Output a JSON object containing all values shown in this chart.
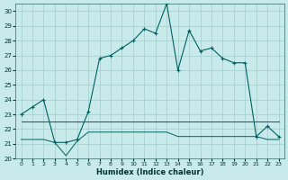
{
  "xlabel": "Humidex (Indice chaleur)",
  "bg_color": "#c8eaea",
  "grid_color": "#a0cccc",
  "line_color": "#006060",
  "xlim": [
    -0.5,
    23.5
  ],
  "ylim": [
    20,
    30.5
  ],
  "yticks": [
    20,
    21,
    22,
    23,
    24,
    25,
    26,
    27,
    28,
    29,
    30
  ],
  "xticks": [
    0,
    1,
    2,
    3,
    4,
    5,
    6,
    7,
    8,
    9,
    10,
    11,
    12,
    13,
    14,
    15,
    16,
    17,
    18,
    19,
    20,
    21,
    22,
    23
  ],
  "series1_x": [
    0,
    1,
    2,
    3,
    4,
    5,
    6,
    7,
    8,
    9,
    10,
    11,
    12,
    13,
    14,
    15,
    16,
    17,
    18,
    19,
    20,
    21,
    22,
    23
  ],
  "series1_y": [
    23.0,
    23.5,
    24.0,
    21.1,
    21.1,
    21.3,
    23.2,
    26.8,
    27.0,
    27.5,
    28.0,
    28.8,
    28.5,
    30.5,
    26.0,
    28.7,
    27.3,
    27.5,
    26.8,
    26.5,
    26.5,
    21.5,
    22.2,
    21.5
  ],
  "series2_x": [
    0,
    1,
    2,
    3,
    4,
    5,
    6,
    7,
    8,
    9,
    10,
    11,
    12,
    13,
    14,
    15,
    16,
    17,
    18,
    19,
    20,
    21,
    22,
    23
  ],
  "series2_y": [
    22.5,
    22.5,
    22.5,
    22.5,
    22.5,
    22.5,
    22.5,
    22.5,
    22.5,
    22.5,
    22.5,
    22.5,
    22.5,
    22.5,
    22.5,
    22.5,
    22.5,
    22.5,
    22.5,
    22.5,
    22.5,
    22.5,
    22.5,
    22.5
  ],
  "series3_x": [
    0,
    1,
    2,
    3,
    4,
    5,
    6,
    7,
    8,
    9,
    10,
    11,
    12,
    13,
    14,
    15,
    16,
    17,
    18,
    19,
    20,
    21,
    22,
    23
  ],
  "series3_y": [
    21.3,
    21.3,
    21.3,
    21.1,
    20.2,
    21.2,
    21.8,
    21.8,
    21.8,
    21.8,
    21.8,
    21.8,
    21.8,
    21.8,
    21.5,
    21.5,
    21.5,
    21.5,
    21.5,
    21.5,
    21.5,
    21.5,
    21.3,
    21.3
  ]
}
